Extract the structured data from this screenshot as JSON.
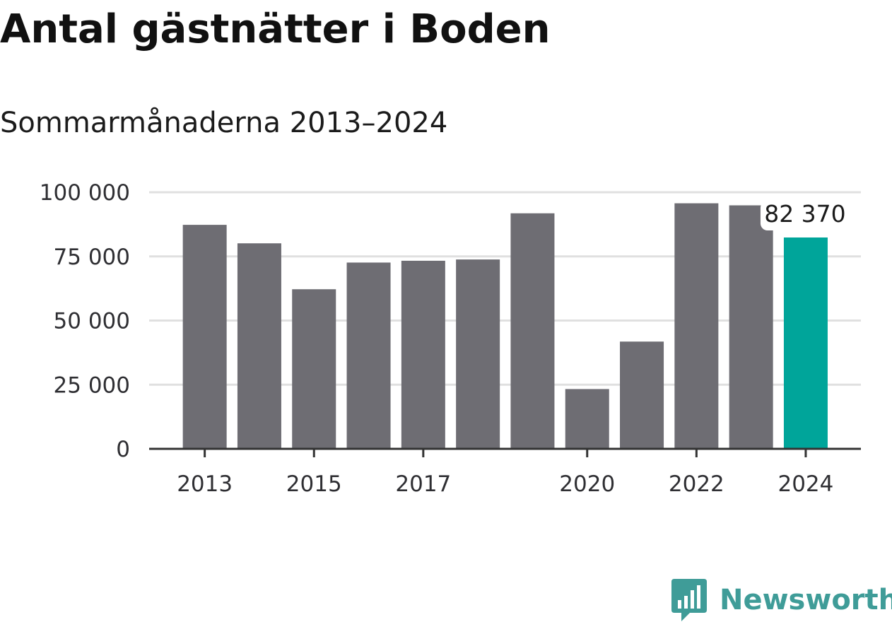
{
  "header": {
    "title": "Antal gästnätter i Boden",
    "subtitle": "Sommarmånaderna 2013–2024"
  },
  "brand": {
    "name": "Newsworthy",
    "icon": "newsworthy-chart-bubble-icon",
    "color": "#3f9c98"
  },
  "chart_data": {
    "type": "bar",
    "categories": [
      "2013",
      "2014",
      "2015",
      "2016",
      "2017",
      "2018",
      "2019",
      "2020",
      "2021",
      "2022",
      "2023",
      "2024"
    ],
    "values": [
      87300,
      80100,
      62200,
      72600,
      73300,
      73800,
      91800,
      23300,
      41800,
      95700,
      94900,
      82370
    ],
    "x_tick_labels": [
      "2013",
      "2015",
      "2017",
      "2020",
      "2022",
      "2024"
    ],
    "y_ticks": [
      0,
      25000,
      50000,
      75000,
      100000
    ],
    "y_tick_labels": [
      "0",
      "25 000",
      "50 000",
      "75 000",
      "100 000"
    ],
    "ylim": [
      0,
      100000
    ],
    "annotation": {
      "category": "2024",
      "label": "82 370"
    },
    "grid": true,
    "colors": {
      "bar": "#6e6d73",
      "highlight": "#00a59a",
      "grid": "#e0e0e0",
      "axis": "#333333"
    }
  }
}
